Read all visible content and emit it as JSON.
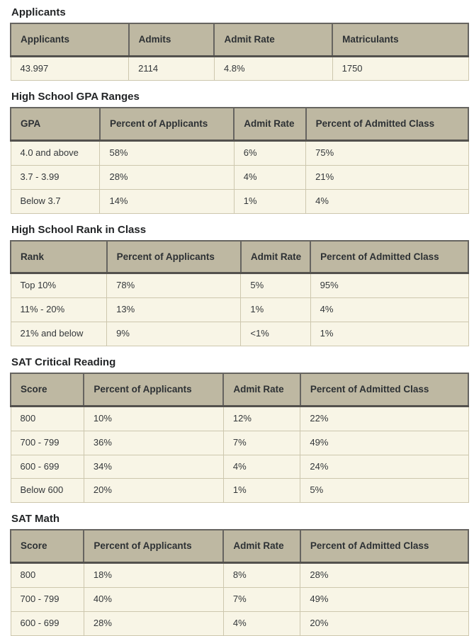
{
  "colors": {
    "page_bg": "#ffffff",
    "title_text": "#232527",
    "header_bg": "#beb8a2",
    "header_text": "#2d3134",
    "body_bg": "#f8f5e6",
    "body_text": "#33373a",
    "border_dark": "#666460",
    "border_darker": "#53514d",
    "border_light": "#cdc7ae"
  },
  "tables": [
    {
      "title": "Applicants",
      "columns": [
        "Applicants",
        "Admits",
        "Admit Rate",
        "Matriculants"
      ],
      "col_widths": [
        "25.8%",
        "18.7%",
        "25.8%",
        "29.7%"
      ],
      "rows": [
        [
          "43.997",
          "2114",
          "4.8%",
          "1750"
        ]
      ]
    },
    {
      "title": "High School GPA Ranges",
      "columns": [
        "GPA",
        "Percent of Applicants",
        "Admit Rate",
        "Percent of Admitted Class"
      ],
      "col_widths": [
        "19.5%",
        "29.3%",
        "15.7%",
        "35.5%"
      ],
      "rows": [
        [
          "4.0 and above",
          "58%",
          "6%",
          "75%"
        ],
        [
          "3.7  -  3.99",
          "28%",
          "4%",
          "21%"
        ],
        [
          "Below 3.7",
          "14%",
          "1%",
          "4%"
        ]
      ]
    },
    {
      "title": "High School Rank in Class",
      "columns": [
        "Rank",
        "Percent of Applicants",
        "Admit Rate",
        "Percent of Admitted Class"
      ],
      "col_widths": [
        "21.0%",
        "29.3%",
        "15.2%",
        "34.5%"
      ],
      "rows": [
        [
          "Top 10%",
          "78%",
          "5%",
          "95%"
        ],
        [
          "11% - 20%",
          "13%",
          "1%",
          "4%"
        ],
        [
          "21% and below",
          "9%",
          "<1%",
          "1%"
        ]
      ]
    },
    {
      "title": "SAT Critical Reading",
      "columns": [
        "Score",
        "Percent of Applicants",
        "Admit Rate",
        "Percent of Admitted Class"
      ],
      "col_widths": [
        "16.0%",
        "30.5%",
        "16.8%",
        "36.7%"
      ],
      "rows": [
        [
          "800",
          "10%",
          "12%",
          "22%"
        ],
        [
          "700 - 799",
          "36%",
          "7%",
          "49%"
        ],
        [
          "600 - 699",
          "34%",
          "4%",
          "24%"
        ],
        [
          "Below 600",
          "20%",
          "1%",
          "5%"
        ]
      ]
    },
    {
      "title": "SAT Math",
      "columns": [
        "Score",
        "Percent of Applicants",
        "Admit Rate",
        "Percent of Admitted Class"
      ],
      "col_widths": [
        "16.0%",
        "30.5%",
        "16.8%",
        "36.7%"
      ],
      "rows": [
        [
          "800",
          "18%",
          "8%",
          "28%"
        ],
        [
          "700 - 799",
          "40%",
          "7%",
          "49%"
        ],
        [
          "600 - 699",
          "28%",
          "4%",
          "20%"
        ]
      ]
    }
  ]
}
